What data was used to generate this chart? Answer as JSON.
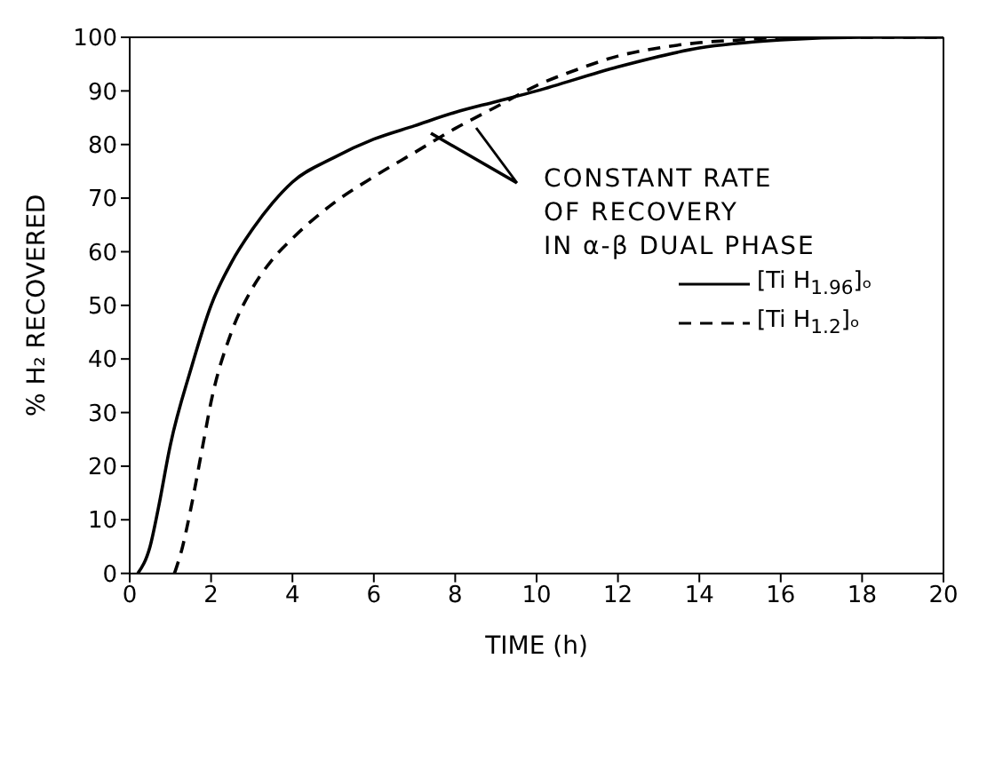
{
  "chart_data": {
    "type": "line",
    "xlabel": "TIME (h)",
    "ylabel": "% H₂ RECOVERED",
    "xlim": [
      0,
      20
    ],
    "xticks": [
      0,
      2,
      4,
      6,
      8,
      10,
      12,
      14,
      16,
      18,
      20
    ],
    "ylim": [
      0,
      100
    ],
    "yticks": [
      0,
      10,
      20,
      30,
      40,
      50,
      60,
      70,
      80,
      90,
      100
    ],
    "grid": false,
    "legend": "right",
    "marker": "none",
    "annotations": [
      "CONSTANT RATE\nOF RECOVERY\nIN α-β DUAL PHASE"
    ],
    "series": [
      {
        "name": "[Ti H$_{1.96}$]ₒ",
        "color": "#000000",
        "line_style": "solid",
        "x": [
          0.2,
          0.5,
          0.7,
          1,
          1.5,
          2,
          2.5,
          3,
          3.5,
          4,
          5,
          6,
          7,
          8,
          9,
          10,
          12,
          14,
          16,
          18,
          20
        ],
        "values": [
          0,
          5,
          12,
          24,
          38,
          50,
          58,
          64,
          69,
          73,
          77.5,
          81,
          83.5,
          86,
          88,
          90,
          94.5,
          98,
          99.5,
          100,
          100
        ]
      },
      {
        "name": "[Ti H$_{1.2}$]ₒ",
        "color": "#000000",
        "line_style": "dashed",
        "x": [
          1.1,
          1.3,
          1.5,
          1.8,
          2,
          2.5,
          3,
          3.5,
          4,
          5,
          6,
          7,
          8,
          9,
          10,
          11,
          12,
          13,
          14,
          15,
          16,
          20
        ],
        "values": [
          0,
          5,
          12,
          24,
          32,
          45,
          53,
          58.5,
          62.5,
          69,
          74,
          78.5,
          83,
          87,
          91,
          94,
          96.5,
          98,
          99,
          99.5,
          100,
          100
        ]
      }
    ]
  }
}
